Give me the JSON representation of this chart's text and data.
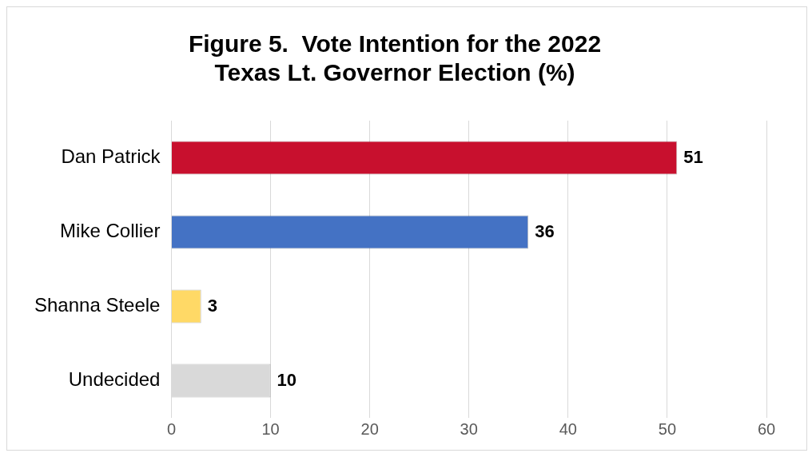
{
  "chart_data": {
    "type": "bar",
    "orientation": "horizontal",
    "title": "Figure 5.  Vote Intention for the 2022\nTexas Lt. Governor Election (%)",
    "categories": [
      "Dan Patrick",
      "Mike Collier",
      "Shanna Steele",
      "Undecided"
    ],
    "values": [
      51,
      36,
      3,
      10
    ],
    "colors": [
      "#c8102e",
      "#4472c4",
      "#ffd966",
      "#d9d9d9"
    ],
    "xlim": [
      0,
      60
    ],
    "xticks": [
      0,
      10,
      20,
      30,
      40,
      50,
      60
    ],
    "grid": "x",
    "data_labels": true,
    "legend": false
  }
}
